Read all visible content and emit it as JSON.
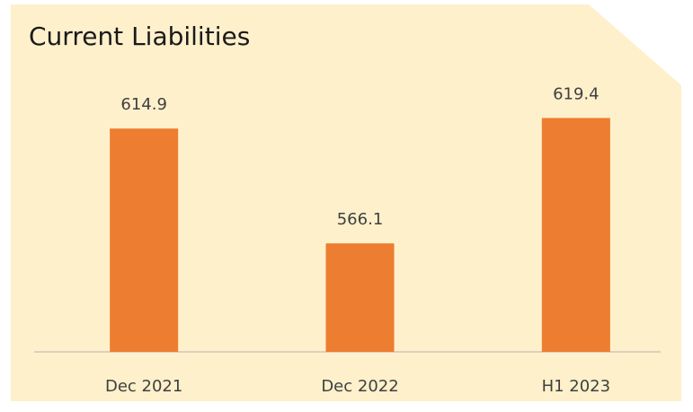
{
  "chart_data": {
    "type": "bar",
    "title": "Current Liabilities",
    "categories": [
      "Dec 2021",
      "Dec 2022",
      "H1 2023"
    ],
    "values": [
      614.9,
      566.1,
      619.4
    ],
    "color": "#ed7d31",
    "ylim": [
      520,
      660
    ]
  }
}
